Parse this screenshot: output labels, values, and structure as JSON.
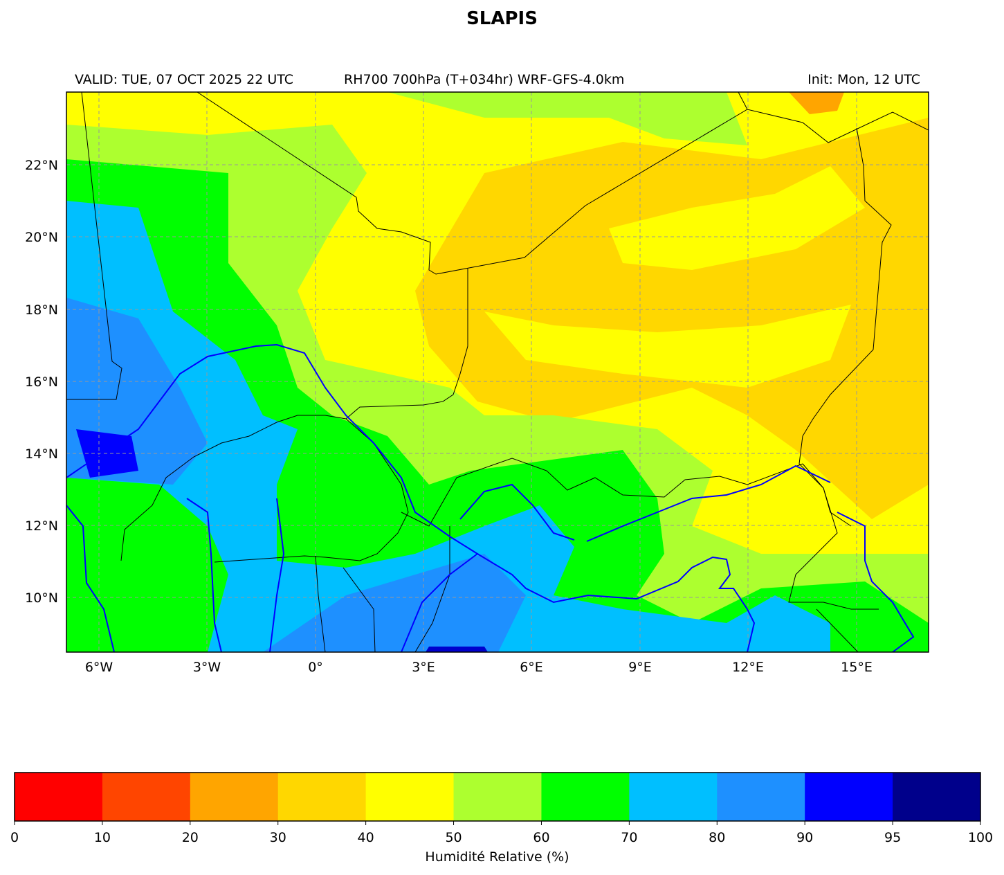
{
  "title": "SLAPIS",
  "header": {
    "valid": "VALID: TUE, 07 OCT 2025 22 UTC",
    "product": "RH700 700hPa (T+034hr) WRF-GFS-4.0km",
    "init": "Init: Mon, 12 UTC"
  },
  "map": {
    "lon_range": [
      -6.9,
      17.0
    ],
    "lat_range": [
      8.5,
      24.0
    ],
    "lon_ticks": [
      "6°W",
      "3°W",
      "0°",
      "3°E",
      "6°E",
      "9°E",
      "12°E",
      "15°E"
    ],
    "lat_ticks": [
      "22°N",
      "20°N",
      "18°N",
      "16°N",
      "14°N",
      "12°N",
      "10°N"
    ],
    "gridlines": true,
    "borders_color": "#000000",
    "rivers_color": "#0000ff"
  },
  "colorbar": {
    "label": "Humidité Relative (%)",
    "ticks": [
      "0",
      "10",
      "20",
      "30",
      "40",
      "50",
      "60",
      "70",
      "80",
      "90",
      "95",
      "100"
    ],
    "colors": [
      "#ff0000",
      "#ff4500",
      "#ffa500",
      "#ffd700",
      "#ffff00",
      "#adff2f",
      "#00ff00",
      "#00bfff",
      "#1e90ff",
      "#0000ff",
      "#00008b"
    ]
  }
}
